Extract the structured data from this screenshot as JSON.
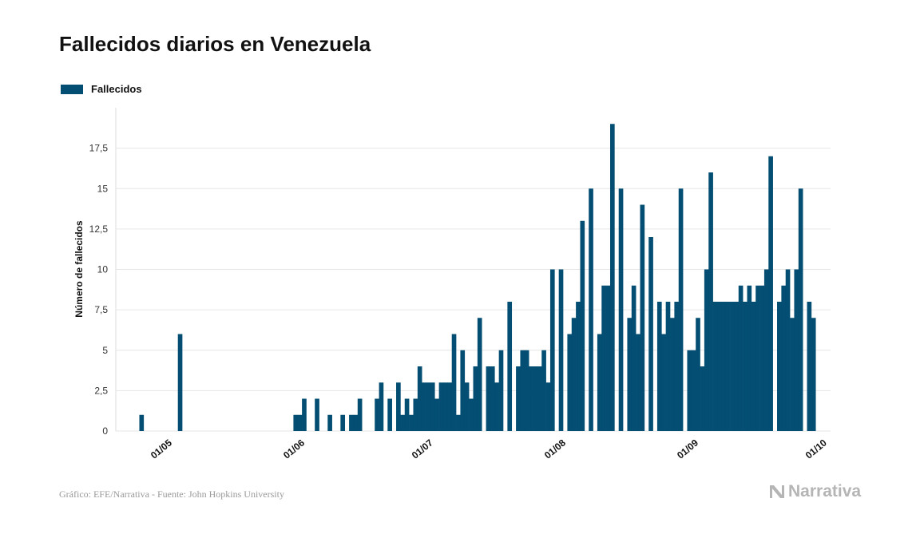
{
  "title": "Fallecidos diarios en Venezuela",
  "footer": {
    "source": "Gráfico: EFE/Narrativa - Fuente: John Hopkins University",
    "logo_text": "Narrativa",
    "logo_color": "#b5b5b5"
  },
  "chart_data": {
    "type": "bar",
    "title": "Fallecidos diarios en Venezuela",
    "xlabel": "",
    "ylabel": "Número de fallecidos",
    "legend": {
      "position": "top-left"
    },
    "grid": {
      "y": true,
      "x": false
    },
    "color": "#034e72",
    "ylim": [
      0,
      20
    ],
    "x_start": "2020-04-20",
    "x_end": "2020-10-04",
    "yticks": [
      0,
      2.5,
      5,
      7.5,
      10,
      12.5,
      15,
      17.5
    ],
    "ytick_labels": [
      "0",
      "2,5",
      "5",
      "7,5",
      "10",
      "12,5",
      "15",
      "17,5"
    ],
    "xticks": [
      {
        "date": "2020-05-01",
        "label": "01/05"
      },
      {
        "date": "2020-06-01",
        "label": "01/06"
      },
      {
        "date": "2020-07-01",
        "label": "01/07"
      },
      {
        "date": "2020-08-01",
        "label": "01/08"
      },
      {
        "date": "2020-09-01",
        "label": "01/09"
      },
      {
        "date": "2020-10-01",
        "label": "01/10"
      }
    ],
    "series": [
      {
        "name": "Fallecidos",
        "dates": [
          "2020-04-20",
          "2020-04-21",
          "2020-04-22",
          "2020-04-23",
          "2020-04-24",
          "2020-04-25",
          "2020-04-26",
          "2020-04-27",
          "2020-04-28",
          "2020-04-29",
          "2020-04-30",
          "2020-05-01",
          "2020-05-02",
          "2020-05-03",
          "2020-05-04",
          "2020-05-05",
          "2020-05-06",
          "2020-05-07",
          "2020-05-08",
          "2020-05-09",
          "2020-05-10",
          "2020-05-11",
          "2020-05-12",
          "2020-05-13",
          "2020-05-14",
          "2020-05-15",
          "2020-05-16",
          "2020-05-17",
          "2020-05-18",
          "2020-05-19",
          "2020-05-20",
          "2020-05-21",
          "2020-05-22",
          "2020-05-23",
          "2020-05-24",
          "2020-05-25",
          "2020-05-26",
          "2020-05-27",
          "2020-05-28",
          "2020-05-29",
          "2020-05-30",
          "2020-05-31",
          "2020-06-01",
          "2020-06-02",
          "2020-06-03",
          "2020-06-04",
          "2020-06-05",
          "2020-06-06",
          "2020-06-07",
          "2020-06-08",
          "2020-06-09",
          "2020-06-10",
          "2020-06-11",
          "2020-06-12",
          "2020-06-13",
          "2020-06-14",
          "2020-06-15",
          "2020-06-16",
          "2020-06-17",
          "2020-06-18",
          "2020-06-19",
          "2020-06-20",
          "2020-06-21",
          "2020-06-22",
          "2020-06-23",
          "2020-06-24",
          "2020-06-25",
          "2020-06-26",
          "2020-06-27",
          "2020-06-28",
          "2020-06-29",
          "2020-06-30",
          "2020-07-01",
          "2020-07-02",
          "2020-07-03",
          "2020-07-04",
          "2020-07-05",
          "2020-07-06",
          "2020-07-07",
          "2020-07-08",
          "2020-07-09",
          "2020-07-10",
          "2020-07-11",
          "2020-07-12",
          "2020-07-13",
          "2020-07-14",
          "2020-07-15",
          "2020-07-16",
          "2020-07-17",
          "2020-07-18",
          "2020-07-19",
          "2020-07-20",
          "2020-07-21",
          "2020-07-22",
          "2020-07-23",
          "2020-07-24",
          "2020-07-25",
          "2020-07-26",
          "2020-07-27",
          "2020-07-28",
          "2020-07-29",
          "2020-07-30",
          "2020-07-31",
          "2020-08-01",
          "2020-08-02",
          "2020-08-03",
          "2020-08-04",
          "2020-08-05",
          "2020-08-06",
          "2020-08-07",
          "2020-08-08",
          "2020-08-09",
          "2020-08-10",
          "2020-08-11",
          "2020-08-12",
          "2020-08-13",
          "2020-08-14",
          "2020-08-15",
          "2020-08-16",
          "2020-08-17",
          "2020-08-18",
          "2020-08-19",
          "2020-08-20",
          "2020-08-21",
          "2020-08-22",
          "2020-08-23",
          "2020-08-24",
          "2020-08-25",
          "2020-08-26",
          "2020-08-27",
          "2020-08-28",
          "2020-08-29",
          "2020-08-30",
          "2020-08-31",
          "2020-09-01",
          "2020-09-02",
          "2020-09-03",
          "2020-09-04",
          "2020-09-05",
          "2020-09-06",
          "2020-09-07",
          "2020-09-08",
          "2020-09-09",
          "2020-09-10",
          "2020-09-11",
          "2020-09-12",
          "2020-09-13",
          "2020-09-14",
          "2020-09-15",
          "2020-09-16",
          "2020-09-17",
          "2020-09-18",
          "2020-09-19",
          "2020-09-20",
          "2020-09-21",
          "2020-09-22",
          "2020-09-23",
          "2020-09-24",
          "2020-09-25",
          "2020-09-26",
          "2020-09-27",
          "2020-09-28",
          "2020-09-29",
          "2020-09-30",
          "2020-10-01",
          "2020-10-02"
        ],
        "values": [
          0,
          0,
          0,
          0,
          0,
          0,
          1,
          0,
          0,
          0,
          0,
          0,
          0,
          0,
          0,
          6,
          0,
          0,
          0,
          0,
          0,
          0,
          0,
          0,
          0,
          0,
          0,
          0,
          0,
          0,
          0,
          0,
          0,
          0,
          0,
          0,
          0,
          0,
          0,
          0,
          0,
          0,
          1,
          1,
          2,
          0,
          0,
          2,
          0,
          0,
          1,
          0,
          0,
          1,
          0,
          1,
          1,
          2,
          0,
          0,
          0,
          2,
          3,
          0,
          2,
          0,
          3,
          1,
          2,
          1,
          2,
          4,
          3,
          3,
          3,
          2,
          3,
          3,
          3,
          6,
          1,
          5,
          3,
          2,
          4,
          7,
          0,
          4,
          4,
          3,
          5,
          0,
          8,
          0,
          4,
          5,
          5,
          4,
          4,
          4,
          5,
          3,
          10,
          0,
          10,
          0,
          6,
          7,
          8,
          13,
          0,
          15,
          0,
          6,
          9,
          9,
          19,
          0,
          15,
          0,
          7,
          9,
          6,
          14,
          0,
          12,
          0,
          8,
          6,
          8,
          7,
          8,
          15,
          0,
          5,
          5,
          7,
          4,
          10,
          16,
          8,
          8,
          8,
          8,
          8,
          8,
          9,
          8,
          9,
          8,
          9,
          9,
          10,
          17,
          0,
          8,
          9,
          10,
          7,
          10,
          15,
          0,
          8,
          7,
          0,
          0
        ]
      }
    ]
  }
}
